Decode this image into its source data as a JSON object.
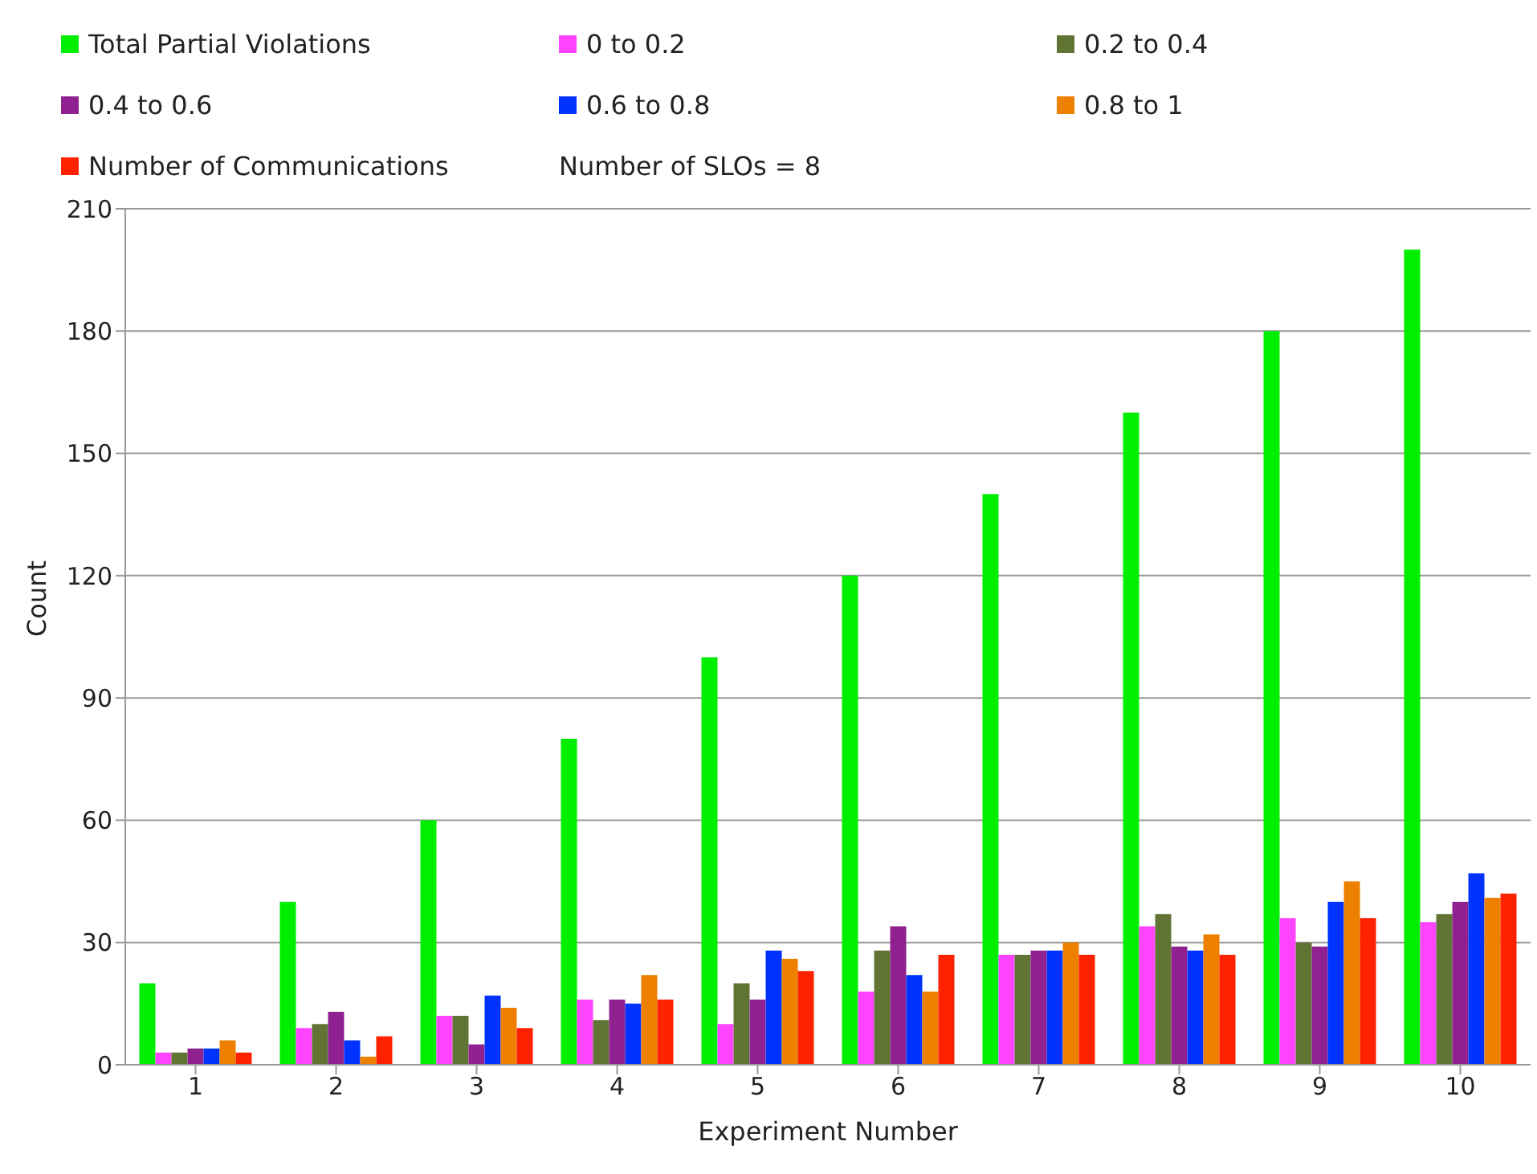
{
  "chart_data": {
    "type": "bar",
    "xlabel": "Experiment Number",
    "ylabel": "Count",
    "categories": [
      "1",
      "2",
      "3",
      "4",
      "5",
      "6",
      "7",
      "8",
      "9",
      "10"
    ],
    "series": [
      {
        "name": "Total Partial Violations",
        "color": "#00ee00",
        "values": [
          20,
          40,
          60,
          80,
          100,
          120,
          140,
          160,
          180,
          200
        ]
      },
      {
        "name": "0 to 0.2",
        "color": "#ff44ff",
        "values": [
          3,
          9,
          12,
          16,
          10,
          18,
          27,
          34,
          36,
          35
        ]
      },
      {
        "name": "0.2 to 0.4",
        "color": "#627434",
        "values": [
          3,
          10,
          12,
          11,
          20,
          28,
          27,
          37,
          30,
          37
        ]
      },
      {
        "name": "0.4 to 0.6",
        "color": "#8f2290",
        "values": [
          4,
          13,
          5,
          16,
          16,
          34,
          28,
          29,
          29,
          40
        ]
      },
      {
        "name": "0.6 to 0.8",
        "color": "#0033ff",
        "values": [
          4,
          6,
          17,
          15,
          28,
          22,
          28,
          28,
          40,
          47
        ]
      },
      {
        "name": "0.8 to 1",
        "color": "#ee8000",
        "values": [
          6,
          2,
          14,
          22,
          26,
          18,
          30,
          32,
          45,
          41
        ]
      },
      {
        "name": "Number of Communications",
        "color": "#ff2200",
        "values": [
          3,
          7,
          9,
          16,
          23,
          27,
          27,
          27,
          36,
          42
        ]
      }
    ],
    "ylim": [
      0,
      210
    ],
    "yticks": [
      0,
      30,
      60,
      90,
      120,
      150,
      180,
      210
    ],
    "grid": "y",
    "legend": "top",
    "annotations": [
      "Number of SLOs = 8"
    ]
  }
}
